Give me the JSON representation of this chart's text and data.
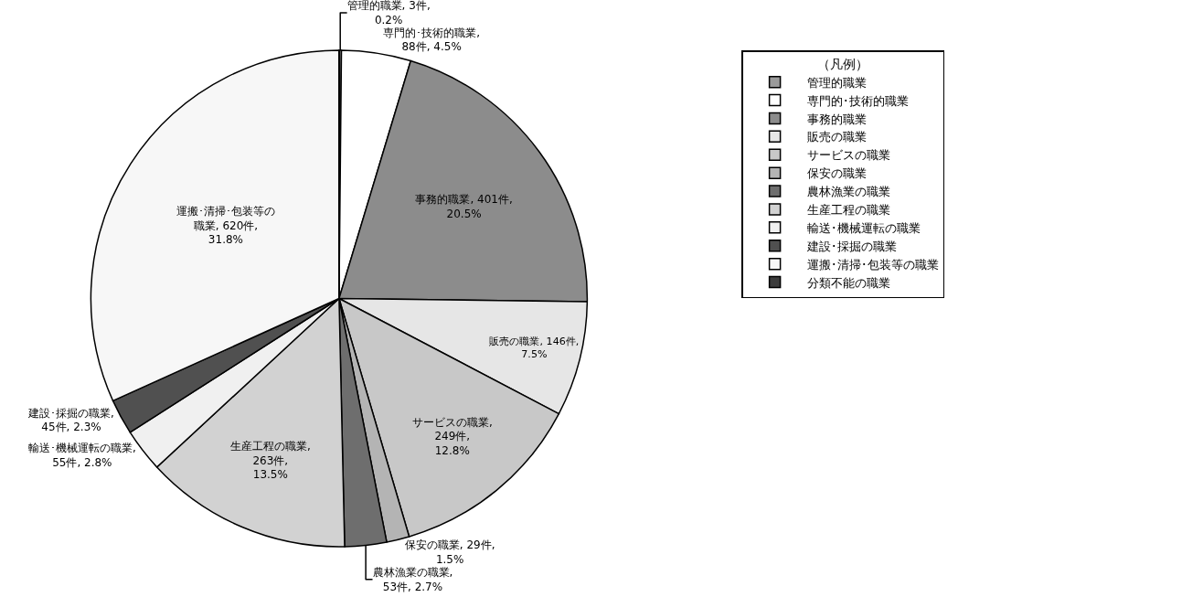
{
  "chart_data": {
    "type": "pie",
    "legend_title": "（凡例）",
    "legend": "top right",
    "categories": [
      "管理的職業",
      "専門的･技術的職業",
      "事務的職業",
      "販売の職業",
      "サービスの職業",
      "保安の職業",
      "農林漁業の職業",
      "生産工程の職業",
      "輸送･機械運転の職業",
      "建設･採掘の職業",
      "運搬･清掃･包装等の職業",
      "分類不能の職業"
    ],
    "values": [
      3,
      88,
      401,
      146,
      249,
      29,
      53,
      263,
      55,
      45,
      620,
      0
    ],
    "colors": [
      "#9a9a9a",
      "#ffffff",
      "#8c8c8c",
      "#e6e6e6",
      "#c8c8c8",
      "#b4b4b4",
      "#6e6e6e",
      "#d2d2d2",
      "#f0f0f0",
      "#505050",
      "#f7f7f7",
      "#3c3c3c"
    ],
    "value_labels": [
      "管理的職業, 3件, 0.2%",
      "専門的･技術的職業, 88件, 4.5%",
      "事務的職業, 401件, 20.5%",
      "販売の職業, 146件, 7.5%",
      "サービスの職業, 249件, 12.8%",
      "保安の職業, 29件, 1.5%",
      "農林漁業の職業, 53件, 2.7%",
      "生産工程の職業, 263件, 13.5%",
      "輸送･機械運転の職業, 55件, 2.8%",
      "建設･採掘の職業, 45件, 2.3%",
      "運搬･清掃･包装等の職業, 620件, 31.8%",
      null
    ]
  }
}
